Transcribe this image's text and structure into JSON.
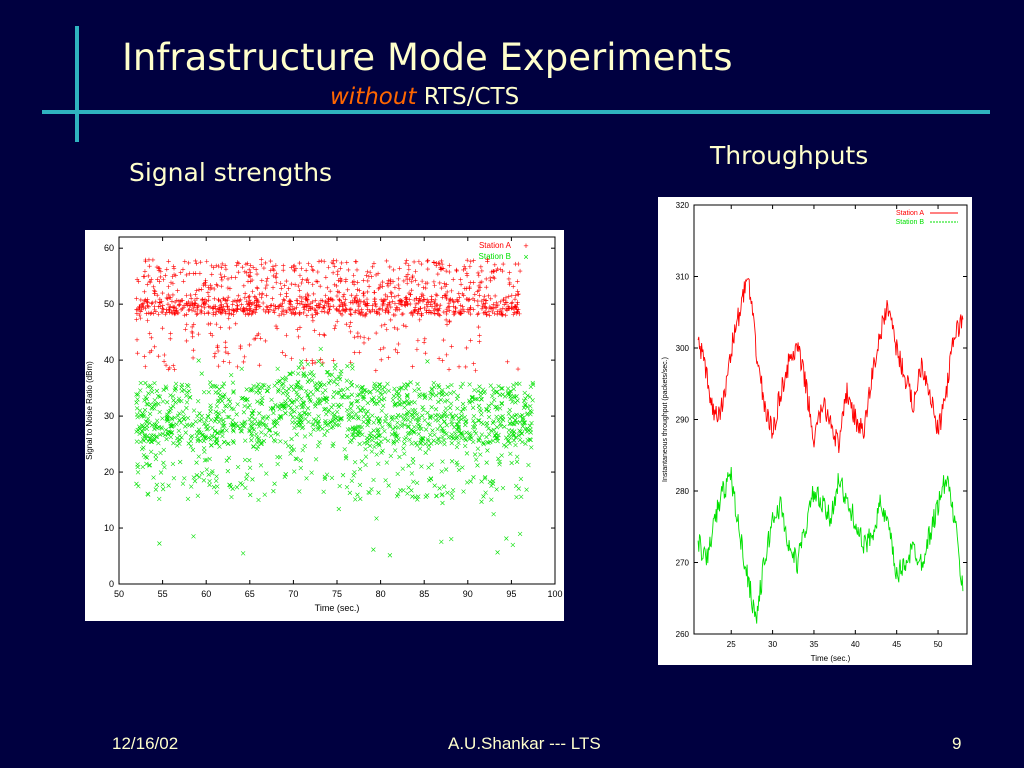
{
  "slide": {
    "title": "Infrastructure Mode Experiments",
    "subtitle_emphasis": "without",
    "subtitle_rest": "RTS/CTS",
    "left_label": "Signal strengths",
    "right_label": "Throughputs",
    "footer_date": "12/16/02",
    "footer_author": "A.U.Shankar   --- LTS",
    "footer_page": "9",
    "colors": {
      "background": "#000040",
      "rule": "#2fb3c0",
      "text": "#ffffcc",
      "accent": "#ff6600"
    }
  },
  "chart_data": [
    {
      "type": "scatter",
      "title": "",
      "xlabel": "Time (sec.)",
      "ylabel": "Signal to Noise Ratio (dBm)",
      "xlim": [
        50,
        100
      ],
      "ylim": [
        0,
        62
      ],
      "xticks": [
        50,
        55,
        60,
        65,
        70,
        75,
        80,
        85,
        90,
        95,
        100
      ],
      "yticks": [
        0,
        10,
        20,
        30,
        40,
        50,
        60
      ],
      "grid": false,
      "legend": "top-right",
      "series": [
        {
          "name": "Station A",
          "marker": "+",
          "color": "#ff0000",
          "x_range": [
            52,
            96
          ],
          "dense_band": [
            48,
            51
          ],
          "spread": [
            38,
            59
          ]
        },
        {
          "name": "Station B",
          "marker": "x",
          "color": "#00e000",
          "x_range": [
            52,
            97.5
          ],
          "dense_band": [
            25,
            35
          ],
          "spread": [
            8,
            40
          ]
        }
      ]
    },
    {
      "type": "line",
      "title": "",
      "xlabel": "Time (sec.)",
      "ylabel": "Instantaneous throughput (packets/sec.)",
      "xlim": [
        20.5,
        53.5
      ],
      "ylim": [
        260,
        320
      ],
      "xticks": [
        25,
        30,
        35,
        40,
        45,
        50
      ],
      "yticks": [
        260,
        270,
        280,
        290,
        300,
        310,
        320
      ],
      "grid": false,
      "legend": "top-right",
      "series": [
        {
          "name": "Station A",
          "color": "#ff0000",
          "x": [
            21,
            22,
            23,
            24,
            25,
            26,
            27,
            28,
            29,
            30,
            31,
            32,
            33,
            34,
            35,
            36,
            37,
            38,
            39,
            40,
            41,
            42,
            43,
            44,
            45,
            46,
            47,
            48,
            49,
            50,
            51,
            52,
            53
          ],
          "values": [
            302,
            296,
            290,
            292,
            300,
            305,
            310,
            300,
            292,
            288,
            294,
            298,
            300,
            295,
            287,
            292,
            290,
            286,
            294,
            290,
            288,
            296,
            302,
            306,
            300,
            296,
            292,
            298,
            294,
            288,
            294,
            302,
            304
          ]
        },
        {
          "name": "Station B",
          "color": "#00e000",
          "x": [
            21,
            22,
            23,
            24,
            25,
            26,
            27,
            28,
            29,
            30,
            31,
            32,
            33,
            34,
            35,
            36,
            37,
            38,
            39,
            40,
            41,
            42,
            43,
            44,
            45,
            46,
            47,
            48,
            49,
            50,
            51,
            52,
            53
          ],
          "values": [
            273,
            270,
            276,
            280,
            282,
            274,
            268,
            262,
            270,
            276,
            278,
            272,
            270,
            275,
            280,
            278,
            276,
            282,
            278,
            276,
            272,
            274,
            278,
            275,
            268,
            270,
            272,
            270,
            274,
            278,
            282,
            276,
            266
          ]
        }
      ]
    }
  ]
}
